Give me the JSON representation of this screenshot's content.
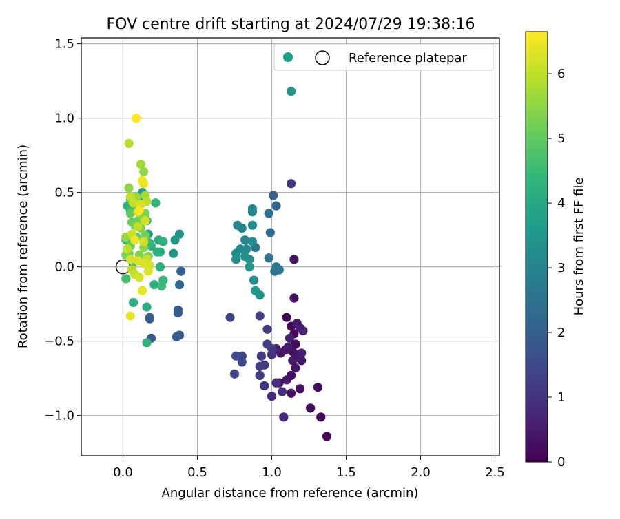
{
  "chart_data": {
    "type": "scatter",
    "title": "FOV centre drift starting at 2024/07/29 19:38:16",
    "xlabel": "Angular distance from reference (arcmin)",
    "ylabel": "Rotation from reference (arcmin)",
    "xlim": [
      -0.28,
      2.53
    ],
    "ylim": [
      -1.27,
      1.54
    ],
    "xticks": [
      0.0,
      0.5,
      1.0,
      1.5,
      2.0,
      2.5
    ],
    "xtick_labels": [
      "0.0",
      "0.5",
      "1.0",
      "1.5",
      "2.0",
      "2.5"
    ],
    "yticks": [
      -1.0,
      -0.5,
      0.0,
      0.5,
      1.0,
      1.5
    ],
    "ytick_labels": [
      "−1.0",
      "−0.5",
      "0.0",
      "0.5",
      "1.0",
      "1.5"
    ],
    "grid": true,
    "legend": {
      "placement": "upper right",
      "entries": [
        {
          "label": "",
          "marker": "filled-circle",
          "color": "#1f9e89"
        },
        {
          "label": "Reference platepar",
          "marker": "open-circle",
          "color": "#000000"
        }
      ]
    },
    "reference_point": {
      "x": 0.0,
      "y": 0.0,
      "label": "Reference platepar"
    },
    "colorbar": {
      "label": "Hours from first FF file",
      "colormap": "viridis",
      "range": [
        0,
        6.65
      ],
      "ticks": [
        0,
        1,
        2,
        3,
        4,
        5,
        6
      ],
      "tick_labels": [
        "0",
        "1",
        "2",
        "3",
        "4",
        "5",
        "6"
      ],
      "colors": [
        "#440154",
        "#482878",
        "#3e4989",
        "#31688e",
        "#26828e",
        "#1f9e89",
        "#35b779",
        "#6ece58",
        "#b5de2b",
        "#fde725"
      ]
    },
    "series": [
      {
        "points": [
          {
            "x": 1.1,
            "y": -0.34,
            "t": 0.05
          },
          {
            "x": 1.13,
            "y": -0.4,
            "t": 0.1
          },
          {
            "x": 1.15,
            "y": -0.45,
            "t": 0.15
          },
          {
            "x": 1.16,
            "y": -0.52,
            "t": 0.2
          },
          {
            "x": 1.14,
            "y": -0.57,
            "t": 0.25
          },
          {
            "x": 1.18,
            "y": -0.59,
            "t": 0.3
          },
          {
            "x": 1.2,
            "y": -0.63,
            "t": 0.35
          },
          {
            "x": 1.16,
            "y": -0.68,
            "t": 0.4
          },
          {
            "x": 1.14,
            "y": -0.63,
            "t": 0.45
          },
          {
            "x": 1.17,
            "y": -0.38,
            "t": 0.5
          },
          {
            "x": 1.19,
            "y": -0.41,
            "t": 0.55
          },
          {
            "x": 1.21,
            "y": -0.43,
            "t": 0.6
          },
          {
            "x": 1.13,
            "y": -0.73,
            "t": 0.25
          },
          {
            "x": 1.19,
            "y": -0.82,
            "t": 0.3
          },
          {
            "x": 1.13,
            "y": -0.85,
            "t": 0.35
          },
          {
            "x": 1.06,
            "y": -0.58,
            "t": 0.4
          },
          {
            "x": 1.09,
            "y": -0.56,
            "t": 0.45
          },
          {
            "x": 1.11,
            "y": -0.54,
            "t": 0.5
          },
          {
            "x": 1.03,
            "y": -0.55,
            "t": 0.55
          },
          {
            "x": 1.26,
            "y": -0.95,
            "t": 0.2
          },
          {
            "x": 1.33,
            "y": -1.01,
            "t": 0.15
          },
          {
            "x": 1.37,
            "y": -1.14,
            "t": 0.1
          },
          {
            "x": 1.31,
            "y": -0.81,
            "t": 0.2
          },
          {
            "x": 1.15,
            "y": -0.21,
            "t": 0.25
          },
          {
            "x": 1.15,
            "y": 0.05,
            "t": 0.3
          },
          {
            "x": 1.05,
            "y": -0.78,
            "t": 0.35
          },
          {
            "x": 1.1,
            "y": -0.76,
            "t": 0.4
          },
          {
            "x": 1.17,
            "y": -0.61,
            "t": 0.45
          },
          {
            "x": 1.2,
            "y": -0.58,
            "t": 0.55
          },
          {
            "x": 1.12,
            "y": -0.48,
            "t": 0.6
          }
        ]
      },
      {
        "points": [
          {
            "x": 1.13,
            "y": 0.56,
            "t": 1.1
          },
          {
            "x": 0.97,
            "y": -0.42,
            "t": 1.2
          },
          {
            "x": 0.92,
            "y": -0.33,
            "t": 1.25
          },
          {
            "x": 0.72,
            "y": -0.34,
            "t": 1.4
          },
          {
            "x": 0.97,
            "y": -0.52,
            "t": 1.2
          },
          {
            "x": 1.0,
            "y": -0.59,
            "t": 1.0
          },
          {
            "x": 0.93,
            "y": -0.6,
            "t": 1.1
          },
          {
            "x": 0.92,
            "y": -0.67,
            "t": 1.3
          },
          {
            "x": 0.95,
            "y": -0.66,
            "t": 1.0
          },
          {
            "x": 0.92,
            "y": -0.73,
            "t": 1.2
          },
          {
            "x": 0.95,
            "y": -0.8,
            "t": 1.0
          },
          {
            "x": 1.0,
            "y": -0.87,
            "t": 0.8
          },
          {
            "x": 1.03,
            "y": -0.78,
            "t": 0.9
          },
          {
            "x": 1.08,
            "y": -1.01,
            "t": 0.8
          },
          {
            "x": 1.07,
            "y": -0.84,
            "t": 0.9
          },
          {
            "x": 0.8,
            "y": -0.6,
            "t": 1.4
          },
          {
            "x": 0.8,
            "y": -0.64,
            "t": 1.5
          },
          {
            "x": 0.76,
            "y": -0.6,
            "t": 1.5
          },
          {
            "x": 0.75,
            "y": -0.72,
            "t": 1.4
          },
          {
            "x": 1.0,
            "y": -0.55,
            "t": 1.1
          }
        ]
      },
      {
        "points": [
          {
            "x": 0.36,
            "y": -0.47,
            "t": 1.9
          },
          {
            "x": 0.38,
            "y": -0.46,
            "t": 1.8
          },
          {
            "x": 0.37,
            "y": -0.29,
            "t": 1.8
          },
          {
            "x": 0.37,
            "y": -0.31,
            "t": 1.9
          },
          {
            "x": 0.18,
            "y": -0.34,
            "t": 1.9
          },
          {
            "x": 0.18,
            "y": -0.35,
            "t": 2.0
          },
          {
            "x": 0.19,
            "y": -0.48,
            "t": 1.9
          },
          {
            "x": 0.39,
            "y": -0.03,
            "t": 2.0
          },
          {
            "x": 0.38,
            "y": -0.12,
            "t": 2.2
          },
          {
            "x": 1.01,
            "y": 0.48,
            "t": 2.1
          },
          {
            "x": 1.03,
            "y": 0.41,
            "t": 2.2
          },
          {
            "x": 0.98,
            "y": 0.36,
            "t": 2.4
          },
          {
            "x": 0.99,
            "y": 0.23,
            "t": 2.4
          },
          {
            "x": 0.98,
            "y": 0.06,
            "t": 2.5
          },
          {
            "x": 1.02,
            "y": -0.03,
            "t": 2.6
          },
          {
            "x": 1.05,
            "y": -0.02,
            "t": 2.6
          },
          {
            "x": 1.03,
            "y": 0.0,
            "t": 2.7
          },
          {
            "x": 0.89,
            "y": 0.13,
            "t": 2.6
          }
        ]
      },
      {
        "points": [
          {
            "x": 0.87,
            "y": 0.37,
            "t": 3.0
          },
          {
            "x": 0.87,
            "y": 0.39,
            "t": 3.1
          },
          {
            "x": 0.87,
            "y": 0.28,
            "t": 3.2
          },
          {
            "x": 0.77,
            "y": 0.28,
            "t": 3.1
          },
          {
            "x": 0.8,
            "y": 0.26,
            "t": 3.0
          },
          {
            "x": 0.82,
            "y": 0.18,
            "t": 3.1
          },
          {
            "x": 0.87,
            "y": 0.17,
            "t": 3.2
          },
          {
            "x": 0.83,
            "y": 0.12,
            "t": 3.2
          },
          {
            "x": 0.79,
            "y": 0.12,
            "t": 3.1
          },
          {
            "x": 0.76,
            "y": 0.09,
            "t": 3.2
          },
          {
            "x": 0.76,
            "y": 0.05,
            "t": 3.3
          },
          {
            "x": 0.82,
            "y": 0.07,
            "t": 3.4
          },
          {
            "x": 0.85,
            "y": 0.05,
            "t": 3.3
          },
          {
            "x": 0.85,
            "y": 0.0,
            "t": 3.5
          },
          {
            "x": 0.88,
            "y": -0.09,
            "t": 3.3
          },
          {
            "x": 0.89,
            "y": -0.16,
            "t": 3.5
          },
          {
            "x": 0.92,
            "y": -0.19,
            "t": 3.4
          },
          {
            "x": 1.13,
            "y": 1.18,
            "t": 3.5
          },
          {
            "x": 0.38,
            "y": 0.22,
            "t": 3.4
          },
          {
            "x": 0.35,
            "y": 0.18,
            "t": 3.5
          },
          {
            "x": 0.34,
            "y": 0.09,
            "t": 3.5
          },
          {
            "x": 0.17,
            "y": 0.22,
            "t": 3.6
          },
          {
            "x": 0.13,
            "y": 0.5,
            "t": 3.7
          },
          {
            "x": 0.12,
            "y": 0.45,
            "t": 3.8
          }
        ]
      },
      {
        "points": [
          {
            "x": 0.24,
            "y": 0.18,
            "t": 4.1
          },
          {
            "x": 0.27,
            "y": 0.17,
            "t": 4.2
          },
          {
            "x": 0.22,
            "y": 0.43,
            "t": 4.3
          },
          {
            "x": 0.25,
            "y": 0.1,
            "t": 4.1
          },
          {
            "x": 0.23,
            "y": 0.1,
            "t": 4.2
          },
          {
            "x": 0.25,
            "y": 0.0,
            "t": 4.3
          },
          {
            "x": 0.27,
            "y": -0.09,
            "t": 4.4
          },
          {
            "x": 0.26,
            "y": -0.13,
            "t": 4.5
          },
          {
            "x": 0.21,
            "y": -0.12,
            "t": 4.2
          },
          {
            "x": 0.16,
            "y": -0.27,
            "t": 4.1
          },
          {
            "x": 0.07,
            "y": -0.24,
            "t": 4.2
          },
          {
            "x": 0.16,
            "y": -0.51,
            "t": 4.3
          },
          {
            "x": 0.03,
            "y": 0.41,
            "t": 4.2
          },
          {
            "x": 0.05,
            "y": 0.38,
            "t": 4.4
          },
          {
            "x": 0.11,
            "y": 0.42,
            "t": 4.2
          },
          {
            "x": 0.16,
            "y": 0.31,
            "t": 4.3
          },
          {
            "x": 0.18,
            "y": 0.16,
            "t": 4.4
          },
          {
            "x": 0.19,
            "y": 0.14,
            "t": 4.2
          },
          {
            "x": 0.02,
            "y": 0.18,
            "t": 4.5
          },
          {
            "x": 0.02,
            "y": -0.08,
            "t": 4.6
          },
          {
            "x": 0.07,
            "y": 0.03,
            "t": 4.7
          },
          {
            "x": 0.05,
            "y": 0.45,
            "t": 4.8
          },
          {
            "x": 0.08,
            "y": 0.4,
            "t": 4.6
          }
        ]
      },
      {
        "points": [
          {
            "x": 0.05,
            "y": 0.36,
            "t": 5.0
          },
          {
            "x": 0.06,
            "y": 0.3,
            "t": 5.1
          },
          {
            "x": 0.08,
            "y": 0.28,
            "t": 5.2
          },
          {
            "x": 0.1,
            "y": 0.31,
            "t": 5.1
          },
          {
            "x": 0.12,
            "y": 0.26,
            "t": 5.3
          },
          {
            "x": 0.15,
            "y": 0.21,
            "t": 5.2
          },
          {
            "x": 0.13,
            "y": 0.33,
            "t": 5.4
          },
          {
            "x": 0.15,
            "y": 0.36,
            "t": 5.3
          },
          {
            "x": 0.09,
            "y": 0.2,
            "t": 5.0
          },
          {
            "x": 0.05,
            "y": 0.14,
            "t": 5.1
          },
          {
            "x": 0.04,
            "y": 0.09,
            "t": 5.2
          },
          {
            "x": 0.02,
            "y": 0.08,
            "t": 5.3
          },
          {
            "x": 0.11,
            "y": 0.08,
            "t": 5.4
          },
          {
            "x": 0.14,
            "y": 0.13,
            "t": 5.5
          },
          {
            "x": 0.17,
            "y": 0.07,
            "t": 5.4
          },
          {
            "x": 0.02,
            "y": 0.2,
            "t": 5.6
          },
          {
            "x": 0.04,
            "y": 0.53,
            "t": 5.5
          },
          {
            "x": 0.09,
            "y": 0.47,
            "t": 5.6
          },
          {
            "x": 0.14,
            "y": 0.64,
            "t": 5.5
          },
          {
            "x": 0.12,
            "y": 0.69,
            "t": 5.7
          },
          {
            "x": 0.15,
            "y": 0.48,
            "t": 5.7
          }
        ]
      },
      {
        "points": [
          {
            "x": 0.04,
            "y": 0.83,
            "t": 5.9
          },
          {
            "x": 0.05,
            "y": 0.47,
            "t": 6.0
          },
          {
            "x": 0.07,
            "y": 0.43,
            "t": 6.1
          },
          {
            "x": 0.12,
            "y": 0.42,
            "t": 6.2
          },
          {
            "x": 0.16,
            "y": 0.44,
            "t": 6.0
          },
          {
            "x": 0.1,
            "y": 0.37,
            "t": 6.1
          },
          {
            "x": 0.15,
            "y": 0.31,
            "t": 6.2
          },
          {
            "x": 0.1,
            "y": 0.27,
            "t": 6.0
          },
          {
            "x": 0.06,
            "y": 0.22,
            "t": 6.1
          },
          {
            "x": 0.05,
            "y": 0.05,
            "t": 6.2
          },
          {
            "x": 0.1,
            "y": 0.04,
            "t": 6.3
          },
          {
            "x": 0.16,
            "y": 0.05,
            "t": 6.1
          },
          {
            "x": 0.18,
            "y": 0.01,
            "t": 6.2
          },
          {
            "x": 0.14,
            "y": 0.02,
            "t": 6.3
          },
          {
            "x": 0.06,
            "y": -0.02,
            "t": 6.0
          },
          {
            "x": 0.08,
            "y": -0.05,
            "t": 6.1
          },
          {
            "x": 0.11,
            "y": -0.07,
            "t": 6.2
          },
          {
            "x": 0.13,
            "y": -0.16,
            "t": 6.4
          },
          {
            "x": 0.05,
            "y": -0.33,
            "t": 6.4
          },
          {
            "x": 0.08,
            "y": 0.18,
            "t": 6.5
          },
          {
            "x": 0.13,
            "y": 0.58,
            "t": 6.5
          },
          {
            "x": 0.14,
            "y": 0.56,
            "t": 6.4
          },
          {
            "x": 0.09,
            "y": 1.0,
            "t": 6.65
          },
          {
            "x": 0.11,
            "y": 0.38,
            "t": 6.6
          },
          {
            "x": 0.17,
            "y": -0.03,
            "t": 6.3
          },
          {
            "x": 0.03,
            "y": 0.12,
            "t": 6.0
          },
          {
            "x": 0.14,
            "y": 0.17,
            "t": 6.2
          }
        ]
      }
    ]
  }
}
